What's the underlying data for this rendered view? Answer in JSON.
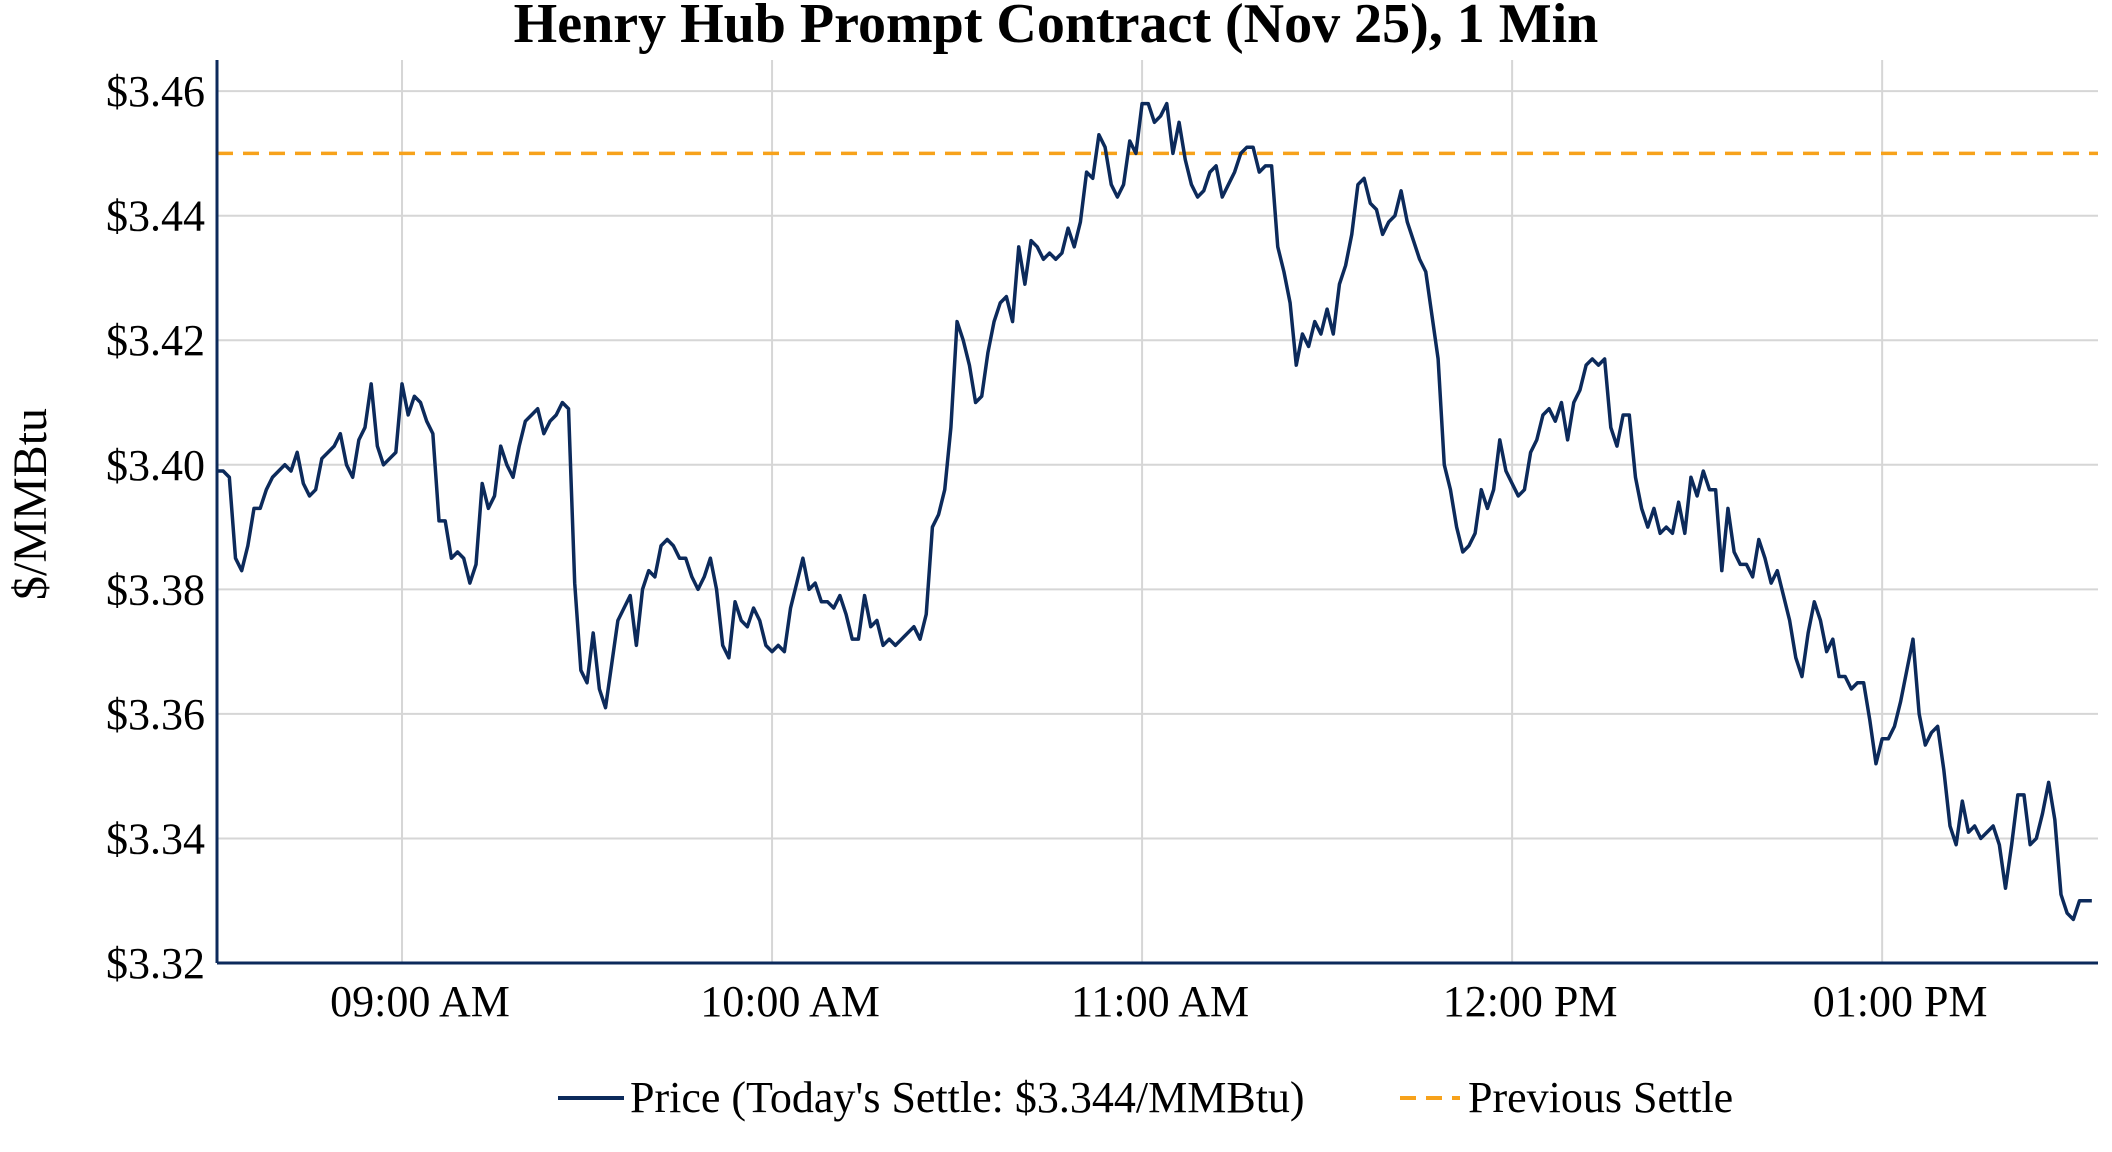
{
  "chart_data": {
    "type": "line",
    "title": "Henry Hub Prompt Contract (Nov 25), 1 Min",
    "xlabel": "",
    "ylabel": "$/MMBtu",
    "ylim": [
      3.32,
      3.465
    ],
    "y_ticks": [
      3.32,
      3.34,
      3.36,
      3.38,
      3.4,
      3.42,
      3.44,
      3.46
    ],
    "y_tick_labels": [
      "$3.32",
      "$3.34",
      "$3.36",
      "$3.38",
      "$3.40",
      "$3.42",
      "$3.44",
      "$3.46"
    ],
    "x_ticks": [
      {
        "time": "09:00",
        "label": "09:00 AM"
      },
      {
        "time": "10:00",
        "label": "10:00 AM"
      },
      {
        "time": "11:00",
        "label": "11:00 AM"
      },
      {
        "time": "12:00",
        "label": "12:00 PM"
      },
      {
        "time": "13:00",
        "label": "01:00 PM"
      }
    ],
    "xlim": [
      "08:30",
      "13:35"
    ],
    "grid": true,
    "legend_position": "bottom",
    "series": [
      {
        "name": "Price (Today's Settle: $3.344/MMBtu)",
        "color": "#0c2a5b",
        "style": "solid",
        "start_time": "08:30",
        "interval_minutes": 1,
        "values": [
          3.399,
          3.399,
          3.398,
          3.385,
          3.383,
          3.387,
          3.393,
          3.393,
          3.396,
          3.398,
          3.399,
          3.4,
          3.399,
          3.402,
          3.397,
          3.395,
          3.396,
          3.401,
          3.402,
          3.403,
          3.405,
          3.4,
          3.398,
          3.404,
          3.406,
          3.413,
          3.403,
          3.4,
          3.401,
          3.402,
          3.413,
          3.408,
          3.411,
          3.41,
          3.407,
          3.405,
          3.391,
          3.391,
          3.385,
          3.386,
          3.385,
          3.381,
          3.384,
          3.397,
          3.393,
          3.395,
          3.403,
          3.4,
          3.398,
          3.403,
          3.407,
          3.408,
          3.409,
          3.405,
          3.407,
          3.408,
          3.41,
          3.409,
          3.381,
          3.367,
          3.365,
          3.373,
          3.364,
          3.361,
          3.368,
          3.375,
          3.377,
          3.379,
          3.371,
          3.38,
          3.383,
          3.382,
          3.387,
          3.388,
          3.387,
          3.385,
          3.385,
          3.382,
          3.38,
          3.382,
          3.385,
          3.38,
          3.371,
          3.369,
          3.378,
          3.375,
          3.374,
          3.377,
          3.375,
          3.371,
          3.37,
          3.371,
          3.37,
          3.377,
          3.381,
          3.385,
          3.38,
          3.381,
          3.378,
          3.378,
          3.377,
          3.379,
          3.376,
          3.372,
          3.372,
          3.379,
          3.374,
          3.375,
          3.371,
          3.372,
          3.371,
          3.372,
          3.373,
          3.374,
          3.372,
          3.376,
          3.39,
          3.392,
          3.396,
          3.406,
          3.423,
          3.42,
          3.416,
          3.41,
          3.411,
          3.418,
          3.423,
          3.426,
          3.427,
          3.423,
          3.435,
          3.429,
          3.436,
          3.435,
          3.433,
          3.434,
          3.433,
          3.434,
          3.438,
          3.435,
          3.439,
          3.447,
          3.446,
          3.453,
          3.451,
          3.445,
          3.443,
          3.445,
          3.452,
          3.45,
          3.458,
          3.458,
          3.455,
          3.456,
          3.458,
          3.45,
          3.455,
          3.449,
          3.445,
          3.443,
          3.444,
          3.447,
          3.448,
          3.443,
          3.445,
          3.447,
          3.45,
          3.451,
          3.451,
          3.447,
          3.448,
          3.448,
          3.435,
          3.431,
          3.426,
          3.416,
          3.421,
          3.419,
          3.423,
          3.421,
          3.425,
          3.421,
          3.429,
          3.432,
          3.437,
          3.445,
          3.446,
          3.442,
          3.441,
          3.437,
          3.439,
          3.44,
          3.444,
          3.439,
          3.436,
          3.433,
          3.431,
          3.424,
          3.417,
          3.4,
          3.396,
          3.39,
          3.386,
          3.387,
          3.389,
          3.396,
          3.393,
          3.396,
          3.404,
          3.399,
          3.397,
          3.395,
          3.396,
          3.402,
          3.404,
          3.408,
          3.409,
          3.407,
          3.41,
          3.404,
          3.41,
          3.412,
          3.416,
          3.417,
          3.416,
          3.417,
          3.406,
          3.403,
          3.408,
          3.408,
          3.398,
          3.393,
          3.39,
          3.393,
          3.389,
          3.39,
          3.389,
          3.394,
          3.389,
          3.398,
          3.395,
          3.399,
          3.396,
          3.396,
          3.383,
          3.393,
          3.386,
          3.384,
          3.384,
          3.382,
          3.388,
          3.385,
          3.381,
          3.383,
          3.379,
          3.375,
          3.369,
          3.366,
          3.373,
          3.378,
          3.375,
          3.37,
          3.372,
          3.366,
          3.366,
          3.364,
          3.365,
          3.365,
          3.359,
          3.352,
          3.356,
          3.356,
          3.358,
          3.362,
          3.367,
          3.372,
          3.36,
          3.355,
          3.357,
          3.358,
          3.351,
          3.342,
          3.339,
          3.346,
          3.341,
          3.342,
          3.34,
          3.341,
          3.342,
          3.339,
          3.332,
          3.339,
          3.347,
          3.347,
          3.339,
          3.34,
          3.344,
          3.349,
          3.343,
          3.331,
          3.328,
          3.327,
          3.33,
          3.33,
          3.33
        ]
      },
      {
        "name": "Previous Settle",
        "color": "#f7a21b",
        "style": "dashed",
        "value": 3.45
      }
    ]
  }
}
